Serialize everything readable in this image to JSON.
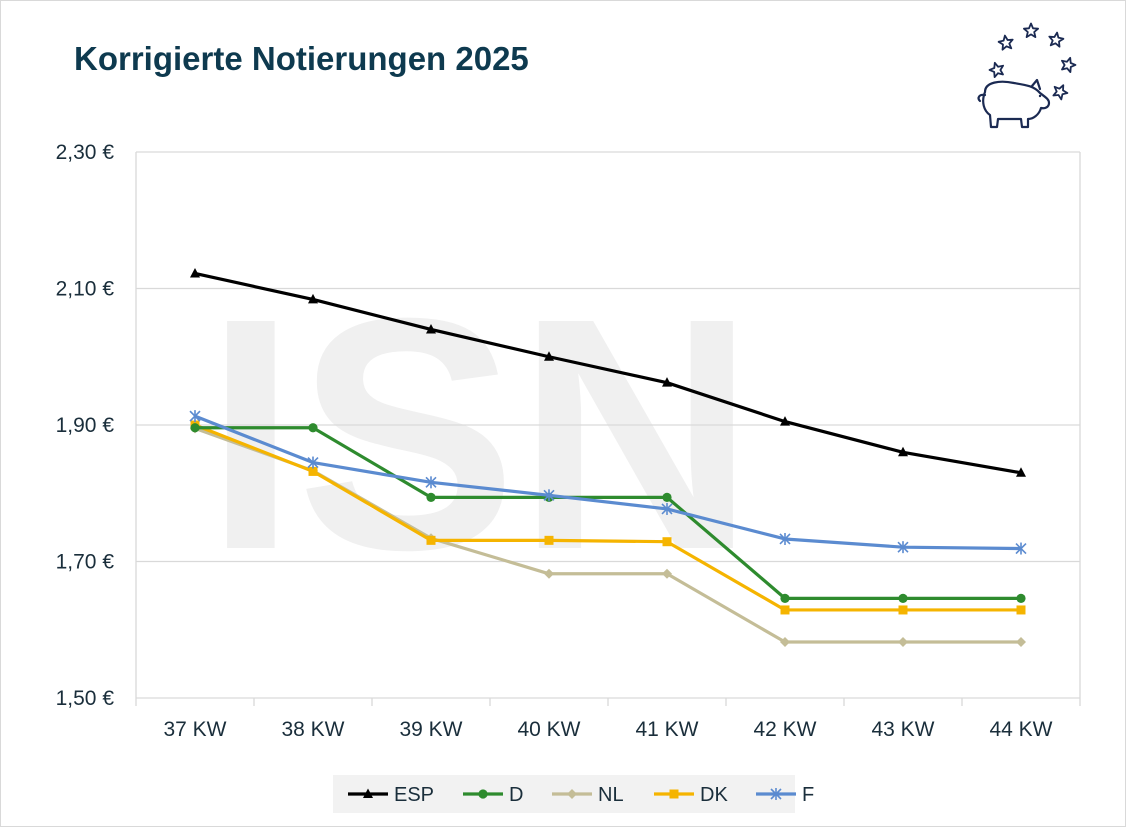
{
  "title": "Korrigierte Notierungen 2025",
  "logo": {
    "icon": "pig-with-eu-stars-icon",
    "color": "#1b2a52"
  },
  "watermark": {
    "text": "ISN",
    "color": "#f0f0f0"
  },
  "chart_data": {
    "type": "line",
    "title": "Korrigierte Notierungen 2025",
    "categories": [
      "37 KW",
      "38 KW",
      "39 KW",
      "40 KW",
      "41 KW",
      "42 KW",
      "43 KW",
      "44 KW"
    ],
    "yticks": [
      "2,30 €",
      "2,10 €",
      "1,90 €",
      "1,70 €",
      "1,50 €"
    ],
    "ylim": [
      1.5,
      2.3
    ],
    "grid": true,
    "legend_position": "bottom",
    "series": [
      {
        "name": "ESP",
        "color": "#000000",
        "marker": "triangle",
        "values": [
          2.122,
          2.084,
          2.04,
          2.0,
          1.962,
          1.905,
          1.86,
          1.83
        ]
      },
      {
        "name": "D",
        "color": "#2e8b2e",
        "marker": "circle",
        "values": [
          1.896,
          1.896,
          1.794,
          1.794,
          1.794,
          1.646,
          1.646,
          1.646
        ]
      },
      {
        "name": "NL",
        "color": "#c4bd97",
        "marker": "diamond",
        "values": [
          1.895,
          1.833,
          1.734,
          1.682,
          1.682,
          1.582,
          1.582,
          1.582
        ]
      },
      {
        "name": "DK",
        "color": "#f5b400",
        "marker": "square",
        "values": [
          1.9,
          1.832,
          1.731,
          1.731,
          1.729,
          1.629,
          1.629,
          1.629
        ]
      },
      {
        "name": "F",
        "color": "#5b8bd0",
        "marker": "star",
        "values": [
          1.913,
          1.845,
          1.816,
          1.797,
          1.777,
          1.733,
          1.721,
          1.719
        ]
      }
    ]
  }
}
